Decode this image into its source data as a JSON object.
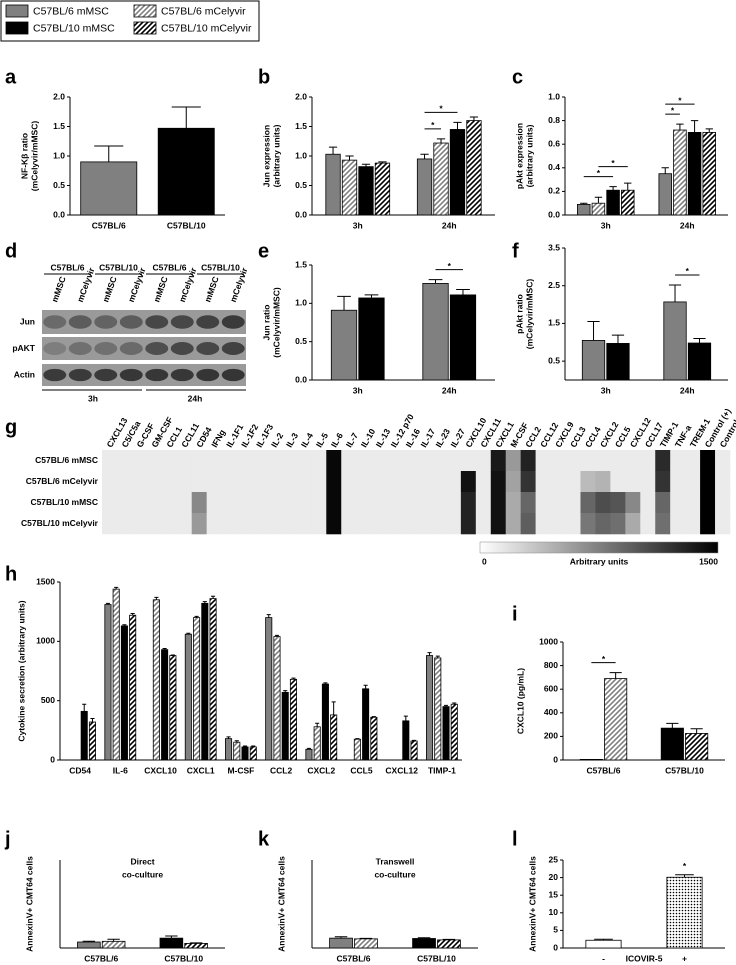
{
  "blot": {
    "panel_label": "d",
    "groups": [
      "C57BL/6",
      "C57BL/10",
      "C57BL/6",
      "C57BL/10"
    ],
    "lanes": [
      "mMSC",
      "mCelyvir",
      "mMSC",
      "mCelyvir",
      "mMSC",
      "mCelyvir",
      "mMSC",
      "mCelyvir"
    ],
    "rows": [
      "Jun",
      "pAKT",
      "Actin"
    ],
    "times": [
      "3h",
      "24h"
    ]
  },
  "chart_data": [
    {
      "type": "bar",
      "panel_label": "a",
      "ylabel": [
        "NF-Kβ ratio",
        "(mCelyvir/mMSC)"
      ],
      "categories": [
        "C57BL/6",
        "C57BL/10"
      ],
      "series": [
        {
          "color": "#808080",
          "values": [
            0.9,
            null
          ],
          "errors": [
            0.27,
            null
          ]
        },
        {
          "color": "#000000",
          "values": [
            null,
            1.47
          ],
          "errors": [
            null,
            0.36
          ]
        }
      ],
      "ylim": [
        0,
        2
      ],
      "yticks": [
        {
          "value": 0,
          "label": "0.0"
        },
        0.5,
        {
          "value": 1,
          "label": "1.0"
        },
        1.5,
        {
          "value": 2,
          "label": "2.0"
        }
      ]
    },
    {
      "type": "bar",
      "panel_label": "b",
      "ylabel": [
        "Jun expression",
        "(arbitrary units)"
      ],
      "categories": [
        "3h",
        "24h"
      ],
      "series": [
        {
          "color": "#808080",
          "values": [
            1.03,
            0.95
          ],
          "errors": [
            0.12,
            0.08
          ]
        },
        {
          "color": "#808080",
          "pattern": "hatch",
          "values": [
            0.93,
            1.22
          ],
          "errors": [
            0.07,
            0.07
          ]
        },
        {
          "color": "#000000",
          "values": [
            0.82,
            1.45
          ],
          "errors": [
            0.04,
            0.12
          ]
        },
        {
          "color": "#000000",
          "pattern": "hatch",
          "values": [
            0.88,
            1.6
          ],
          "errors": [
            0.02,
            0.06
          ]
        }
      ],
      "ylim": [
        0,
        2
      ],
      "yticks": [
        {
          "value": 0,
          "label": "0.0"
        },
        0.5,
        {
          "value": 1,
          "label": "1.0"
        },
        1.5,
        {
          "value": 2,
          "label": "2.0"
        }
      ],
      "stars": [
        {
          "text": "*",
          "category": 1,
          "from": 0,
          "to": 1
        },
        {
          "text": "*",
          "category": 1,
          "from": 0,
          "to": 2
        }
      ]
    },
    {
      "type": "bar",
      "panel_label": "c",
      "ylabel": [
        "pAkt expression",
        "(arbitrary units)"
      ],
      "categories": [
        "3h",
        "24h"
      ],
      "series": [
        {
          "color": "#808080",
          "values": [
            0.09,
            0.35
          ],
          "errors": [
            0.01,
            0.05
          ]
        },
        {
          "color": "#808080",
          "pattern": "hatch",
          "values": [
            0.1,
            0.72
          ],
          "errors": [
            0.05,
            0.05
          ]
        },
        {
          "color": "#000000",
          "values": [
            0.21,
            0.7
          ],
          "errors": [
            0.03,
            0.1
          ]
        },
        {
          "color": "#000000",
          "pattern": "hatch",
          "values": [
            0.21,
            0.7
          ],
          "errors": [
            0.06,
            0.03
          ]
        }
      ],
      "ylim": [
        0,
        1
      ],
      "yticks": [
        {
          "value": 0,
          "label": "0.0"
        },
        0.2,
        0.4,
        0.6,
        0.8,
        {
          "value": 1,
          "label": "1.0"
        }
      ],
      "stars": [
        {
          "text": "*",
          "category": 0,
          "from": 0,
          "to": 2
        },
        {
          "text": "*",
          "category": 0,
          "from": 1,
          "to": 3
        },
        {
          "text": "*",
          "category": 1,
          "from": 0,
          "to": 1
        },
        {
          "text": "*",
          "category": 1,
          "from": 0,
          "to": 2
        }
      ]
    },
    {
      "type": "bar",
      "panel_label": "e",
      "ylabel": [
        "Jun ratio",
        "(mCelyvir/mMSC)"
      ],
      "categories": [
        "3h",
        "24h"
      ],
      "series": [
        {
          "color": "#808080",
          "values": [
            0.91,
            1.26
          ],
          "errors": [
            0.18,
            0.05
          ]
        },
        {
          "color": "#000000",
          "values": [
            1.07,
            1.11
          ],
          "errors": [
            0.04,
            0.07
          ]
        }
      ],
      "ylim": [
        0,
        1.5
      ],
      "yticks": [
        {
          "value": 0,
          "label": "0.0"
        },
        0.5,
        {
          "value": 1,
          "label": "1.0"
        },
        1.5
      ],
      "stars": [
        {
          "text": "*",
          "category": 1,
          "from": 0,
          "to": 1
        }
      ]
    },
    {
      "type": "bar",
      "panel_label": "f",
      "ylabel": [
        "pAkt ratio",
        "(mCelyvir/mMSC)"
      ],
      "categories": [
        "3h",
        "24h"
      ],
      "series": [
        {
          "color": "#808080",
          "values": [
            1.05,
            2.07
          ],
          "errors": [
            0.5,
            0.45
          ]
        },
        {
          "color": "#000000",
          "values": [
            0.97,
            0.98
          ],
          "errors": [
            0.22,
            0.12
          ]
        }
      ],
      "ylim": [
        0,
        3.5
      ],
      "yticks": [
        0.5,
        1.5,
        2.5,
        3.5
      ],
      "stars": [
        {
          "text": "*",
          "category": 1,
          "from": 0,
          "to": 1
        }
      ]
    },
    {
      "type": "heatmap",
      "panel_label": "g",
      "columns": [
        "CXCL13",
        "C5/C5a",
        "G-CSF",
        "GM-CSF",
        "CCL1",
        "CCL11",
        "CD54",
        "IFNg",
        "IL-1F1",
        "IL-1F2",
        "IL-1F3",
        "IL-2",
        "IL-3",
        "IL-4",
        "IL-5",
        "IL-6",
        "IL-7",
        "IL-10",
        "IL-13",
        "IL-12 p70",
        "IL-16",
        "IL-17",
        "IL-23",
        "IL-27",
        "CXCL10",
        "CXCL11",
        "CXCL1",
        "M-CSF",
        "CCL2",
        "CCL12",
        "CXCL9",
        "CCL3",
        "CCL4",
        "CXCL2",
        "CCL5",
        "CXCL12",
        "CCL17",
        "TIMP-1",
        "TNF-a",
        "TREM-1",
        "Control (+)",
        "Control (-)"
      ],
      "rows": [
        "C57BL/6 mMSC",
        "C57BL/6 mCelyvir",
        "C57BL/10 mMSC",
        "C57BL/10 mCelyvir"
      ],
      "values": [
        [
          120,
          120,
          120,
          120,
          120,
          120,
          120,
          120,
          120,
          120,
          120,
          120,
          120,
          120,
          120,
          1450,
          120,
          120,
          120,
          120,
          120,
          120,
          120,
          120,
          120,
          120,
          1350,
          600,
          1300,
          120,
          120,
          120,
          120,
          120,
          120,
          120,
          120,
          1250,
          120,
          120,
          1500,
          120
        ],
        [
          120,
          120,
          120,
          120,
          120,
          120,
          120,
          120,
          120,
          120,
          120,
          120,
          120,
          120,
          120,
          1450,
          120,
          120,
          120,
          120,
          120,
          120,
          120,
          120,
          1400,
          120,
          1400,
          550,
          1200,
          120,
          120,
          120,
          400,
          450,
          120,
          120,
          120,
          1200,
          120,
          120,
          1500,
          120
        ],
        [
          120,
          120,
          120,
          120,
          120,
          120,
          700,
          120,
          120,
          120,
          120,
          120,
          120,
          120,
          120,
          1450,
          120,
          120,
          120,
          120,
          120,
          120,
          120,
          120,
          1300,
          120,
          1400,
          500,
          900,
          120,
          120,
          120,
          900,
          1050,
          1000,
          700,
          120,
          900,
          120,
          120,
          1500,
          120
        ],
        [
          120,
          120,
          120,
          120,
          120,
          120,
          600,
          120,
          120,
          120,
          120,
          120,
          120,
          120,
          120,
          1450,
          120,
          120,
          120,
          120,
          120,
          120,
          120,
          120,
          1300,
          120,
          1400,
          500,
          950,
          120,
          120,
          120,
          800,
          900,
          850,
          500,
          120,
          850,
          120,
          120,
          1500,
          120
        ]
      ],
      "zlim": [
        0,
        1500
      ],
      "colorbar_label": "Arbitrary units"
    },
    {
      "type": "bar",
      "panel_label": "h",
      "ylabel": [
        "Cytokine secretion (arbitrary units)"
      ],
      "categories": [
        "CD54",
        "IL-6",
        "CXCL10",
        "CXCL1",
        "M-CSF",
        "CCL2",
        "CXCL2",
        "CCL5",
        "CXCL12",
        "TIMP-1"
      ],
      "series": [
        {
          "name": "C57BL/6 mMSC",
          "color": "#808080",
          "values": [
            0,
            1310,
            0,
            1060,
            180,
            1200,
            90,
            0,
            0,
            880
          ],
          "errors": [
            0,
            10,
            0,
            8,
            15,
            25,
            8,
            0,
            0,
            25
          ]
        },
        {
          "name": "C57BL/6 mCelyvir",
          "color": "#808080",
          "pattern": "hatch",
          "values": [
            0,
            1440,
            1350,
            1200,
            150,
            1040,
            280,
            175,
            0,
            860
          ],
          "errors": [
            0,
            15,
            20,
            10,
            12,
            10,
            30,
            5,
            0,
            15
          ]
        },
        {
          "name": "C57BL/10 mMSC",
          "color": "#000000",
          "values": [
            410,
            1130,
            930,
            1320,
            110,
            570,
            640,
            600,
            330,
            450
          ],
          "errors": [
            60,
            10,
            10,
            15,
            8,
            15,
            10,
            30,
            40,
            10
          ]
        },
        {
          "name": "C57BL/10 mCelyvir",
          "color": "#000000",
          "pattern": "hatch",
          "values": [
            320,
            1220,
            880,
            1360,
            110,
            680,
            380,
            360,
            160,
            470
          ],
          "errors": [
            30,
            15,
            5,
            20,
            8,
            10,
            110,
            5,
            5,
            10
          ]
        }
      ],
      "ylim": [
        0,
        1500
      ],
      "yticks": [
        0,
        500,
        1000,
        1500
      ]
    },
    {
      "type": "bar",
      "panel_label": "i",
      "ylabel": [
        "CXCL10 (pg/mL)"
      ],
      "categories": [
        "C57BL/6",
        "C57BL/10"
      ],
      "series": [
        {
          "color": "#808080",
          "values": [
            5,
            null
          ]
        },
        {
          "color": "#808080",
          "pattern": "hatch",
          "values": [
            690,
            null
          ],
          "errors": [
            50,
            null
          ]
        },
        {
          "color": "#000000",
          "values": [
            null,
            270
          ],
          "errors": [
            null,
            40
          ]
        },
        {
          "color": "#000000",
          "pattern": "hatch",
          "values": [
            null,
            225
          ],
          "errors": [
            null,
            40
          ]
        }
      ],
      "ylim": [
        0,
        1000
      ],
      "yticks": [
        0,
        200,
        400,
        600,
        800,
        1000
      ],
      "stars": [
        {
          "text": "*",
          "category": 0,
          "from": 0,
          "to": 1
        }
      ]
    },
    {
      "type": "bar",
      "panel_label": "j",
      "title": [
        "Direct",
        "co-culture"
      ],
      "ylabel": [
        "AnnexinV+ CMT64 cells"
      ],
      "categories": [
        "C57BL/6",
        "C57BL/10"
      ],
      "series": [
        {
          "color": "#808080",
          "values": [
            1.7,
            null
          ],
          "errors": [
            0.2,
            null
          ]
        },
        {
          "color": "#808080",
          "pattern": "hatch",
          "values": [
            1.9,
            null
          ],
          "errors": [
            0.6,
            null
          ]
        },
        {
          "color": "#000000",
          "values": [
            null,
            2.8
          ],
          "errors": [
            null,
            0.6
          ]
        },
        {
          "color": "#000000",
          "pattern": "hatch",
          "values": [
            null,
            1.3
          ],
          "errors": [
            null,
            0.15
          ]
        }
      ],
      "ylim": [
        0,
        25
      ]
    },
    {
      "type": "bar",
      "panel_label": "k",
      "title": [
        "Transwell",
        "co-culture"
      ],
      "ylabel": [
        "AnnexinV+ CMT64 cells"
      ],
      "categories": [
        "C57BL/6",
        "C57BL/10"
      ],
      "series": [
        {
          "color": "#808080",
          "values": [
            2.8,
            null
          ],
          "errors": [
            0.4,
            null
          ]
        },
        {
          "color": "#808080",
          "pattern": "hatch",
          "values": [
            2.6,
            null
          ],
          "errors": [
            0.15,
            null
          ]
        },
        {
          "color": "#000000",
          "values": [
            null,
            2.7
          ],
          "errors": [
            null,
            0.2
          ]
        },
        {
          "color": "#000000",
          "pattern": "hatch",
          "values": [
            null,
            2.3
          ],
          "errors": [
            null,
            0.15
          ]
        }
      ],
      "ylim": [
        0,
        25
      ]
    },
    {
      "type": "bar",
      "panel_label": "l",
      "ylabel": [
        "AnnexinV+ CMT64 cells"
      ],
      "xlabel": "ICOVIR-5",
      "categories": [
        "-",
        "+"
      ],
      "series": [
        {
          "color": "#ffffff",
          "values": [
            2.2,
            null
          ],
          "errors": [
            0.3,
            null
          ]
        },
        {
          "color": "#000000",
          "pattern": "dots",
          "values": [
            null,
            20.1
          ],
          "errors": [
            null,
            0.7
          ]
        }
      ],
      "ylim": [
        0,
        25
      ],
      "yticks": [
        0,
        5,
        10,
        15,
        20,
        25
      ],
      "stars": [
        {
          "text": "*",
          "category": 1,
          "from": 1,
          "to": 1
        }
      ]
    }
  ]
}
